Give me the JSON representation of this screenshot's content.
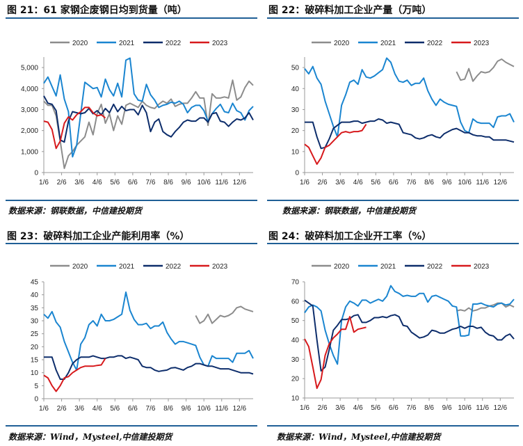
{
  "colors": {
    "2020": "#8c8c8c",
    "2021": "#1a85d0",
    "2022": "#0d2d6b",
    "2023": "#d7191c",
    "rule": "#1f5f96"
  },
  "chart_data": [
    {
      "type": "line",
      "title": "图 21：61 家钢企废钢日均到货量（吨）",
      "source": "数据来源：钢联数据，中信建投期货",
      "xticks": [
        "1/6",
        "2/6",
        "3/6",
        "4/6",
        "5/6",
        "6/6",
        "7/6",
        "8/6",
        "9/6",
        "10/6",
        "11/6",
        "12/6"
      ],
      "x_frequency": "weekly, from 1/6",
      "ylim": [
        0,
        5500
      ],
      "yticks": [
        0,
        1000,
        2000,
        3000,
        4000,
        5000
      ],
      "yticklabels": [
        "0",
        "1,000",
        "2,000",
        "3,000",
        "4,000",
        "5,000"
      ],
      "legend": "top",
      "grid": false,
      "series": [
        {
          "name": "2020",
          "start_week": 0,
          "values": [
            3400,
            3200,
            3200,
            2700,
            1500,
            200,
            800,
            1000,
            1300,
            1500,
            1700,
            2400,
            1800,
            2800,
            3250,
            2350,
            2800,
            2000,
            2700,
            2300,
            3200,
            3300,
            3200,
            3100,
            3400,
            3200,
            3100,
            3050,
            3250,
            3400,
            3300,
            3500,
            3150,
            3250,
            3300,
            3300,
            3550,
            3850,
            3550,
            3550,
            2250,
            3750,
            3550,
            3550,
            3600,
            3550,
            4400,
            3450,
            3600,
            4050,
            4350,
            4150
          ]
        },
        {
          "name": "2021",
          "start_week": 0,
          "values": [
            4250,
            4550,
            4100,
            3650,
            4650,
            3500,
            2900,
            750,
            1300,
            2800,
            4300,
            4150,
            4000,
            4050,
            3600,
            4450,
            3950,
            3650,
            4250,
            3600,
            5350,
            5450,
            3750,
            3450,
            3400,
            4200,
            3700,
            3450,
            3100,
            3200,
            3250,
            3350,
            3300,
            3400,
            3250,
            2850,
            3100,
            3200,
            3200,
            2950,
            2450,
            2800,
            3050,
            3250,
            2900,
            2850,
            3300,
            2950,
            2850,
            2500,
            2950,
            3150
          ]
        },
        {
          "name": "2022",
          "start_week": 0,
          "values": [
            3650,
            3300,
            3250,
            2950,
            1550,
            1450,
            2450,
            2900,
            2850,
            2800,
            2850,
            3050,
            2800,
            2950,
            2750,
            3050,
            2850,
            3250,
            2900,
            3150,
            2950,
            3000,
            3000,
            2750,
            3200,
            2850,
            1950,
            2400,
            2550,
            1950,
            1800,
            1700,
            1950,
            2150,
            2400,
            2500,
            2450,
            2450,
            2600,
            2600,
            2400,
            2800,
            2850,
            2450,
            2400,
            2200,
            2400,
            2550,
            2500,
            2600,
            2850,
            2500
          ]
        },
        {
          "name": "2023",
          "start_week": 0,
          "values": [
            2450,
            2400,
            2050,
            1150,
            1500,
            2350,
            2650,
            2500,
            2750,
            2900,
            3100,
            3100,
            2850,
            2700,
            2750,
            2600
          ]
        }
      ]
    },
    {
      "type": "line",
      "title": "图 22：破碎料加工企业产量（万吨）",
      "source": "数据来源：钢联数据，中信建投期货",
      "xticks": [
        "1/6",
        "2/6",
        "3/6",
        "4/6",
        "5/6",
        "6/6",
        "7/6",
        "8/6",
        "9/6",
        "10/6",
        "11/6",
        "12/6"
      ],
      "x_frequency": "weekly, from 1/6",
      "ylim": [
        0,
        55
      ],
      "yticks": [
        0,
        10,
        20,
        30,
        40,
        50
      ],
      "yticklabels": [
        "0",
        "10",
        "20",
        "30",
        "40",
        "50"
      ],
      "legend": "top",
      "grid": false,
      "series": [
        {
          "name": "2020",
          "start_week": 37,
          "values": [
            48,
            44,
            44.5,
            49.5,
            43.5,
            46,
            48,
            47.5,
            48,
            50,
            53,
            54,
            52.5,
            51.5,
            50.5
          ]
        },
        {
          "name": "2021",
          "start_week": 0,
          "values": [
            49.5,
            47,
            50.5,
            45,
            42,
            34,
            28,
            22,
            17,
            32,
            37,
            43,
            44,
            42,
            49,
            45.5,
            45,
            46,
            47.5,
            49,
            54.5,
            52.5,
            47,
            43.5,
            43,
            44,
            41.5,
            42.5,
            42.5,
            45,
            39,
            35,
            32,
            35,
            33.5,
            32.5,
            32,
            31.5,
            24,
            20,
            19,
            25.5,
            24,
            23.5,
            23.5,
            23.5,
            21.5,
            26.5,
            27,
            27,
            28,
            24
          ]
        },
        {
          "name": "2022",
          "start_week": 0,
          "values": [
            24,
            24,
            24,
            17,
            11.5,
            12,
            16,
            21,
            22.5,
            24,
            24,
            24,
            24.5,
            24.5,
            23.5,
            24,
            24.5,
            24.5,
            25.5,
            25,
            23.5,
            24,
            23.5,
            23,
            19,
            18.5,
            18,
            16.5,
            16,
            16.5,
            17.5,
            18,
            17,
            16.5,
            18.5,
            19.5,
            20.5,
            21,
            20,
            19,
            19,
            18,
            17.5,
            17.5,
            17,
            17,
            15.5,
            15.5,
            15.5,
            15.5,
            15,
            14.5
          ]
        },
        {
          "name": "2023",
          "start_week": 0,
          "values": [
            13.5,
            12,
            8,
            4,
            7,
            12,
            13,
            15,
            17,
            19,
            19.5,
            19,
            19.5,
            19.5,
            20,
            23
          ]
        }
      ]
    },
    {
      "type": "line",
      "title": "图 23：破碎料加工企业产能利用率（%）",
      "source": "数据来源：Wind，Mysteel,中信建投期货",
      "xticks": [
        "1/6",
        "2/6",
        "3/6",
        "4/6",
        "5/6",
        "6/6",
        "7/6",
        "8/6",
        "9/6",
        "10/6",
        "11/6",
        "12/6"
      ],
      "x_frequency": "weekly, from 1/6",
      "ylim": [
        0,
        45
      ],
      "yticks": [
        0,
        5,
        10,
        15,
        20,
        25,
        30,
        35,
        40,
        45
      ],
      "yticklabels": [
        "0",
        "5",
        "10",
        "15",
        "20",
        "25",
        "30",
        "35",
        "40",
        "45"
      ],
      "legend": "top",
      "grid": false,
      "series": [
        {
          "name": "2020",
          "start_week": 37,
          "values": [
            32,
            29,
            30,
            32.5,
            29,
            30.5,
            32,
            31.5,
            32,
            33,
            35,
            35.5,
            34.5,
            34,
            33.5
          ]
        },
        {
          "name": "2021",
          "start_week": 0,
          "values": [
            32.5,
            31,
            33.5,
            29.5,
            27.5,
            22,
            18,
            14,
            11,
            21,
            23.5,
            28.5,
            30,
            28,
            32.5,
            30,
            30,
            30.5,
            31.5,
            32.5,
            41,
            34,
            30.5,
            28.5,
            28.5,
            29,
            27,
            28,
            28,
            29.5,
            25.5,
            23,
            21,
            22,
            22,
            21.5,
            21,
            20.5,
            16,
            13,
            12.5,
            16.5,
            15.5,
            15.5,
            15.5,
            15.5,
            14,
            17.5,
            17.5,
            17.5,
            18.5,
            15.5
          ]
        },
        {
          "name": "2022",
          "start_week": 0,
          "values": [
            16,
            16,
            16,
            11,
            7.5,
            7.5,
            10,
            13.5,
            15,
            16,
            16,
            16,
            16.5,
            16,
            15.5,
            15.5,
            16,
            16,
            16.5,
            16.5,
            15.5,
            16,
            15.5,
            15,
            12.5,
            12,
            12,
            11,
            10.5,
            10.8,
            11,
            11.8,
            12,
            11.5,
            11,
            12,
            12.5,
            13.5,
            13.5,
            13,
            12.5,
            12.5,
            12,
            11.5,
            11.5,
            11.5,
            11,
            10.5,
            10,
            10,
            10,
            9.5
          ]
        },
        {
          "name": "2023",
          "start_week": 0,
          "values": [
            9,
            8,
            5,
            2.8,
            5,
            8,
            8.5,
            10,
            11,
            12,
            12.5,
            12.5,
            12.5,
            12.8,
            13,
            15.5
          ]
        }
      ]
    },
    {
      "type": "line",
      "title": "图 24：破碎料加工企业开工率（%）",
      "source": "数据来源：Wind，Mysteel,中信建投期货",
      "xticks": [
        "1/6",
        "2/6",
        "3/6",
        "4/6",
        "5/6",
        "6/6",
        "7/6",
        "8/6",
        "9/6",
        "10/6",
        "11/6",
        "12/6"
      ],
      "x_frequency": "weekly, from 1/6",
      "ylim": [
        10,
        70
      ],
      "yticks": [
        10,
        20,
        30,
        40,
        50,
        60,
        70
      ],
      "yticklabels": [
        "10",
        "20",
        "30",
        "40",
        "50",
        "60",
        "70"
      ],
      "legend": "top",
      "grid": false,
      "series": [
        {
          "name": "2020",
          "start_week": 37,
          "values": [
            55,
            55.5,
            55,
            56.5,
            55,
            55.5,
            56.5,
            56.5,
            57.5,
            58,
            59,
            59,
            57,
            58,
            57
          ]
        },
        {
          "name": "2021",
          "start_week": 0,
          "values": [
            54,
            57,
            58,
            57,
            55,
            45,
            38,
            32,
            27.5,
            50,
            57,
            60,
            59,
            57.5,
            60.5,
            60.5,
            59,
            60,
            61,
            60,
            62.5,
            68,
            65,
            64,
            62.5,
            63,
            62.5,
            62.5,
            64,
            64,
            59.5,
            62.5,
            63,
            62,
            61,
            60,
            57.5,
            57,
            42,
            42,
            42.5,
            58.5,
            58.5,
            59,
            58,
            57.5,
            57,
            58.5,
            59,
            58,
            58.5,
            61
          ]
        },
        {
          "name": "2022",
          "start_week": 0,
          "values": [
            60.5,
            59,
            57.5,
            40,
            24,
            26,
            35,
            45,
            47.5,
            50.5,
            50.5,
            51,
            52.5,
            53,
            49,
            49,
            50,
            51.5,
            51.5,
            52,
            51.5,
            52.5,
            53,
            52,
            47.5,
            47,
            44,
            42.5,
            41,
            41.5,
            42.5,
            45,
            44.5,
            43.5,
            43.5,
            44.5,
            45.5,
            46,
            47,
            46,
            47,
            47,
            46,
            46.5,
            44,
            42.5,
            42,
            40,
            40,
            42,
            43,
            40.5
          ]
        },
        {
          "name": "2023",
          "start_week": 0,
          "values": [
            40.5,
            36.5,
            26,
            15,
            19.5,
            32,
            38,
            41,
            43,
            45.5,
            45.5,
            52,
            44,
            45.5,
            46,
            46.5
          ]
        }
      ]
    }
  ]
}
